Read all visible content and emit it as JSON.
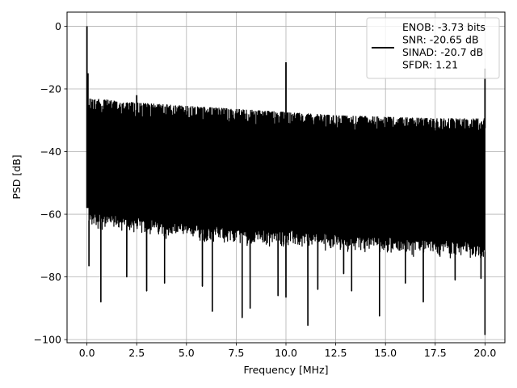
{
  "chart_data": {
    "type": "line",
    "title": "",
    "xlabel": "Frequency [MHz]",
    "ylabel": "PSD [dB]",
    "xlim": [
      -1.0,
      21.0
    ],
    "ylim": [
      -101.0,
      4.5
    ],
    "grid": true,
    "legend_position": "top-right",
    "xticks": [
      0.0,
      2.5,
      5.0,
      7.5,
      10.0,
      12.5,
      15.0,
      17.5,
      20.0
    ],
    "xtick_labels": [
      "0.0",
      "2.5",
      "5.0",
      "7.5",
      "10.0",
      "12.5",
      "15.0",
      "17.5",
      "20.0"
    ],
    "yticks": [
      0,
      -20,
      -40,
      -60,
      -80,
      -100
    ],
    "ytick_labels": [
      "0",
      "−20",
      "−40",
      "−60",
      "−80",
      "−100"
    ],
    "series": [
      {
        "color": "#000000",
        "legend_lines": [
          "ENOB: -3.73 bits",
          "SNR: -20.65 dB",
          "SINAD: -20.7 dB",
          "SFDR: 1.21"
        ],
        "noise_upper_envelope": [
          [
            0.1,
            -23
          ],
          [
            2.5,
            -24.5
          ],
          [
            5,
            -25.5
          ],
          [
            7.5,
            -26.5
          ],
          [
            10,
            -27.5
          ],
          [
            12.5,
            -28.5
          ],
          [
            15,
            -29
          ],
          [
            17.5,
            -29.5
          ],
          [
            20,
            -29.5
          ]
        ],
        "noise_lower_envelope": [
          [
            0.1,
            -62
          ],
          [
            5,
            -66
          ],
          [
            10,
            -68
          ],
          [
            15,
            -70
          ],
          [
            20,
            -72
          ]
        ],
        "peaks": [
          [
            0.0,
            0.0
          ],
          [
            0.05,
            -15
          ],
          [
            2.5,
            -22
          ],
          [
            10.0,
            -11.5
          ],
          [
            20.0,
            -13.5
          ]
        ],
        "dips": [
          [
            0.1,
            -76.5
          ],
          [
            0.7,
            -88
          ],
          [
            2.0,
            -80
          ],
          [
            3.0,
            -84.5
          ],
          [
            3.9,
            -82
          ],
          [
            5.8,
            -83
          ],
          [
            6.3,
            -91
          ],
          [
            7.8,
            -93
          ],
          [
            8.2,
            -90
          ],
          [
            9.6,
            -86
          ],
          [
            10.0,
            -86.5
          ],
          [
            11.1,
            -95.5
          ],
          [
            11.6,
            -84
          ],
          [
            12.9,
            -79
          ],
          [
            13.3,
            -84.5
          ],
          [
            14.7,
            -92.5
          ],
          [
            16.0,
            -82
          ],
          [
            16.9,
            -88
          ],
          [
            18.5,
            -81
          ],
          [
            19.8,
            -80.5
          ],
          [
            20.0,
            -98.5
          ]
        ]
      }
    ]
  }
}
